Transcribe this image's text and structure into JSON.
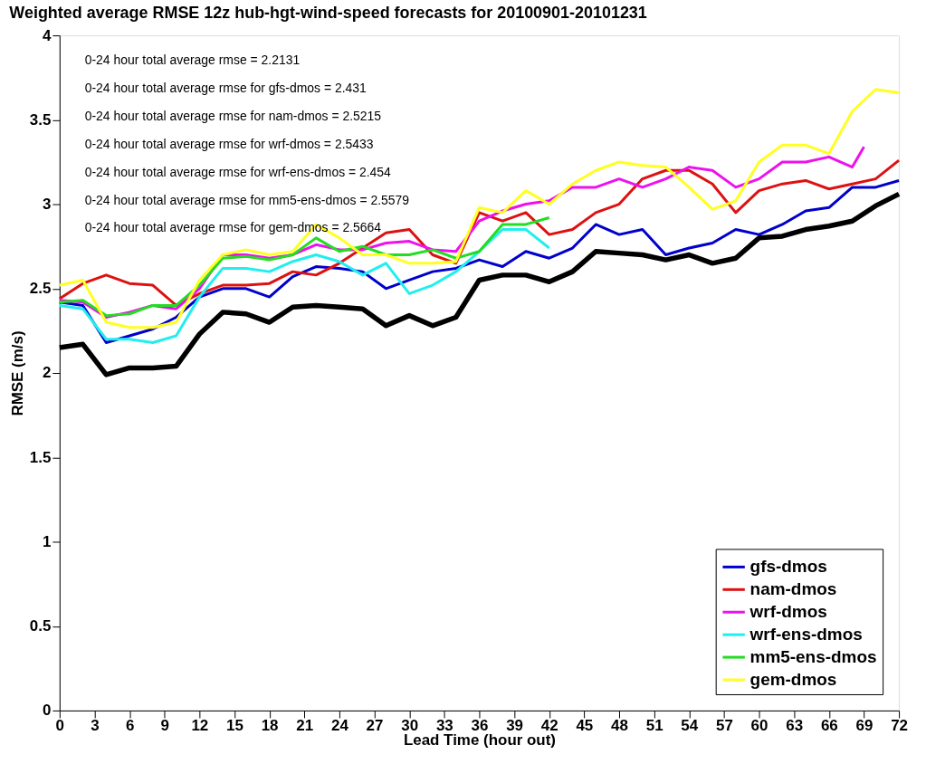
{
  "chart_data": {
    "type": "line",
    "title": "Weighted average RMSE 12z hub-hgt-wind-speed forecasts for 20100901-20101231",
    "xlabel": "Lead Time (hour out)",
    "ylabel": "RMSE (m/s)",
    "xlim": [
      0,
      72
    ],
    "xticks": [
      0,
      3,
      6,
      9,
      12,
      15,
      18,
      21,
      24,
      27,
      30,
      33,
      36,
      39,
      42,
      45,
      48,
      51,
      54,
      57,
      60,
      63,
      66,
      69,
      72
    ],
    "ylim": [
      0,
      4
    ],
    "yticks": [
      0,
      0.5,
      1,
      1.5,
      2,
      2.5,
      3,
      3.5,
      4
    ],
    "grid": false,
    "legend": "bottom right",
    "line_style": "solid",
    "marker": "none",
    "annotations": [
      "0-24 hour total average rmse = 2.2131",
      "0-24 hour total average rmse for gfs-dmos = 2.431",
      "0-24 hour total average rmse for nam-dmos = 2.5215",
      "0-24 hour total average rmse for wrf-dmos = 2.5433",
      "0-24 hour total average rmse for wrf-ens-dmos = 2.454",
      "0-24 hour total average rmse for mm5-ens-dmos = 2.5579",
      "0-24 hour total average rmse for gem-dmos = 2.5664"
    ],
    "x": [
      0,
      2,
      4,
      6,
      8,
      10,
      12,
      14,
      16,
      18,
      20,
      22,
      24,
      26,
      28,
      30,
      32,
      34,
      36,
      38,
      40,
      42,
      44,
      46,
      48,
      50,
      52,
      54,
      56,
      58,
      60,
      62,
      64,
      66,
      68,
      70,
      72
    ],
    "series": [
      {
        "color": "#000000",
        "values": [
          2.15,
          2.17,
          1.99,
          2.03,
          2.03,
          2.04,
          2.23,
          2.36,
          2.35,
          2.3,
          2.39,
          2.4,
          2.39,
          2.38,
          2.28,
          2.34,
          2.28,
          2.33,
          2.55,
          2.58,
          2.58,
          2.54,
          2.6,
          2.72,
          2.71,
          2.7,
          2.67,
          2.7,
          2.65,
          2.68,
          2.8,
          2.81,
          2.85,
          2.87,
          2.9,
          2.99,
          3.06
        ]
      },
      {
        "name": "gfs-dmos",
        "color": "#0000cc",
        "values": [
          2.42,
          2.4,
          2.18,
          2.22,
          2.26,
          2.33,
          2.45,
          2.5,
          2.5,
          2.45,
          2.57,
          2.63,
          2.62,
          2.6,
          2.5,
          2.55,
          2.6,
          2.62,
          2.67,
          2.63,
          2.72,
          2.68,
          2.74,
          2.88,
          2.82,
          2.85,
          2.7,
          2.74,
          2.77,
          2.85,
          2.82,
          2.88,
          2.96,
          2.98,
          3.1,
          3.1,
          3.14
        ]
      },
      {
        "name": "nam-dmos",
        "color": "#dd1111",
        "values": [
          2.44,
          2.53,
          2.58,
          2.53,
          2.52,
          2.4,
          2.47,
          2.52,
          2.52,
          2.53,
          2.6,
          2.58,
          2.65,
          2.74,
          2.83,
          2.85,
          2.7,
          2.65,
          2.95,
          2.9,
          2.95,
          2.82,
          2.85,
          2.95,
          3.0,
          3.15,
          3.2,
          3.2,
          3.12,
          2.95,
          3.08,
          3.12,
          3.14,
          3.09,
          3.12,
          3.15,
          3.26
        ]
      },
      {
        "name": "wrf-dmos",
        "color": "#ee11ee",
        "x": [
          0,
          2,
          4,
          6,
          8,
          10,
          12,
          14,
          16,
          18,
          20,
          22,
          24,
          26,
          28,
          30,
          32,
          34,
          36,
          38,
          40,
          42,
          44,
          46,
          48,
          50,
          52,
          54,
          56,
          58,
          60,
          62,
          64,
          66,
          68,
          69
        ],
        "values": [
          2.43,
          2.42,
          2.33,
          2.36,
          2.4,
          2.38,
          2.5,
          2.7,
          2.7,
          2.68,
          2.7,
          2.76,
          2.73,
          2.73,
          2.77,
          2.78,
          2.73,
          2.72,
          2.9,
          2.96,
          3.0,
          3.02,
          3.1,
          3.1,
          3.15,
          3.1,
          3.15,
          3.22,
          3.2,
          3.1,
          3.15,
          3.25,
          3.25,
          3.28,
          3.22,
          3.34
        ]
      },
      {
        "name": "wrf-ens-dmos",
        "color": "#22eeee",
        "x": [
          0,
          2,
          4,
          6,
          8,
          10,
          12,
          14,
          16,
          18,
          20,
          22,
          24,
          26,
          28,
          30,
          32,
          34,
          36,
          38,
          40,
          42
        ],
        "values": [
          2.4,
          2.38,
          2.2,
          2.2,
          2.18,
          2.22,
          2.45,
          2.62,
          2.62,
          2.6,
          2.66,
          2.7,
          2.66,
          2.58,
          2.65,
          2.47,
          2.52,
          2.6,
          2.72,
          2.85,
          2.85,
          2.74
        ]
      },
      {
        "name": "mm5-ens-dmos",
        "color": "#22dd22",
        "x": [
          0,
          2,
          4,
          6,
          8,
          10,
          12,
          14,
          16,
          18,
          20,
          22,
          24,
          26,
          28,
          30,
          32,
          34,
          36,
          38,
          40,
          42
        ],
        "values": [
          2.42,
          2.43,
          2.34,
          2.35,
          2.4,
          2.4,
          2.52,
          2.68,
          2.69,
          2.67,
          2.7,
          2.8,
          2.72,
          2.75,
          2.7,
          2.7,
          2.73,
          2.68,
          2.72,
          2.88,
          2.88,
          2.92
        ]
      },
      {
        "name": "gem-dmos",
        "color": "#ffff22",
        "values": [
          2.52,
          2.55,
          2.3,
          2.27,
          2.27,
          2.3,
          2.55,
          2.7,
          2.73,
          2.7,
          2.72,
          2.88,
          2.8,
          2.7,
          2.7,
          2.65,
          2.65,
          2.66,
          2.98,
          2.95,
          3.08,
          3.0,
          3.12,
          3.2,
          3.25,
          3.23,
          3.22,
          3.1,
          2.97,
          3.02,
          3.25,
          3.35,
          3.35,
          3.3,
          3.55,
          3.68,
          3.66
        ]
      }
    ]
  }
}
